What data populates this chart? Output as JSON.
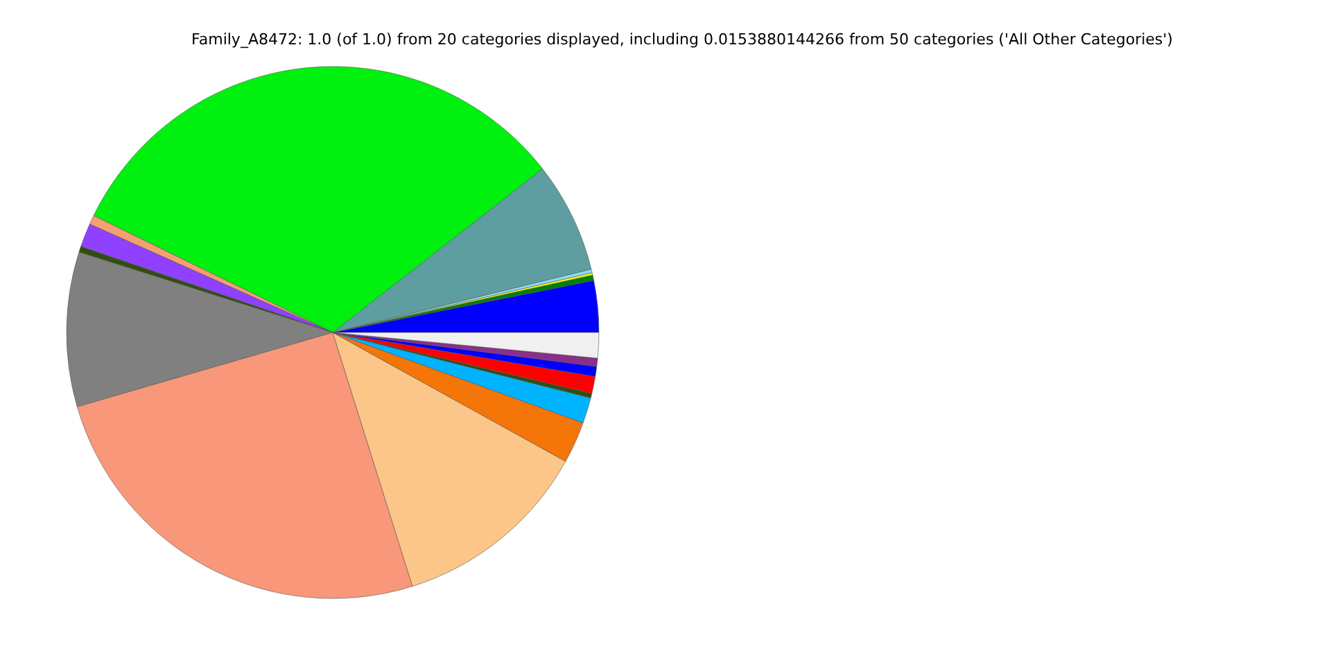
{
  "chart_data": {
    "type": "pie",
    "title": "Family_A8472: 1.0 (of 1.0) from 20 categories displayed, including 0.0153880144266 from 50 categories ('All Other Categories')",
    "categories": [
      null,
      null,
      null,
      null,
      null,
      null,
      null,
      null,
      null,
      null,
      null,
      null,
      null,
      null,
      null,
      null,
      null,
      null,
      null
    ],
    "values": [
      3.14,
      0.33,
      0.14,
      0.22,
      6.72,
      32.21,
      0.56,
      1.44,
      0.36,
      9.39,
      25.33,
      12.11,
      2.53,
      1.56,
      0.28,
      1.03,
      0.61,
      0.5,
      1.54
    ],
    "colors": [
      "#0000ff",
      "#008000",
      "#ffff00",
      "#87dcf5",
      "#5f9ea0",
      "#00f00f",
      "#f4a070",
      "#9040ff",
      "#2f4f0f",
      "#808080",
      "#f8977a",
      "#fcc688",
      "#f47508",
      "#00b3ff",
      "#2f4f0f",
      "#ff0000",
      "#0000ff",
      "#8b2e8b",
      "#f0f0f0"
    ]
  }
}
